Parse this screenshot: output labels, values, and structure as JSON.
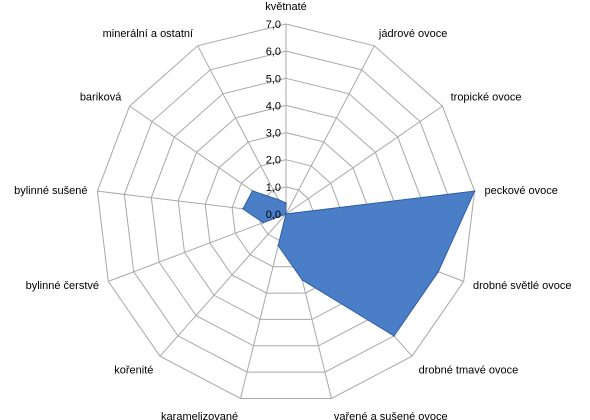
{
  "chart_data": {
    "type": "radar",
    "categories": [
      "květnaté",
      "jádrové ovoce",
      "tropické ovoce",
      "peckové ovoce",
      "drobné světlé ovoce",
      "drobné tmavé ovoce",
      "vařené a sušené ovoce",
      "karamelizované",
      "kořenité",
      "bylinné čerstvé",
      "bylinné sušené",
      "bariková",
      "minerální a ostatní"
    ],
    "values": [
      0.4,
      0,
      0,
      7.0,
      6.0,
      6.0,
      2.5,
      1.2,
      0,
      0.9,
      1.6,
      1.5,
      0.6
    ],
    "ticks": [
      "0,0",
      "1,0",
      "2,0",
      "3,0",
      "4,0",
      "5,0",
      "6,0",
      "7,0"
    ],
    "rmin": 0,
    "rmax": 7,
    "fill_color": "#4a7ec7",
    "stroke_color": "#2f5fa5",
    "grid_color": "#a8a8a8",
    "grid": true,
    "legend": "none"
  }
}
